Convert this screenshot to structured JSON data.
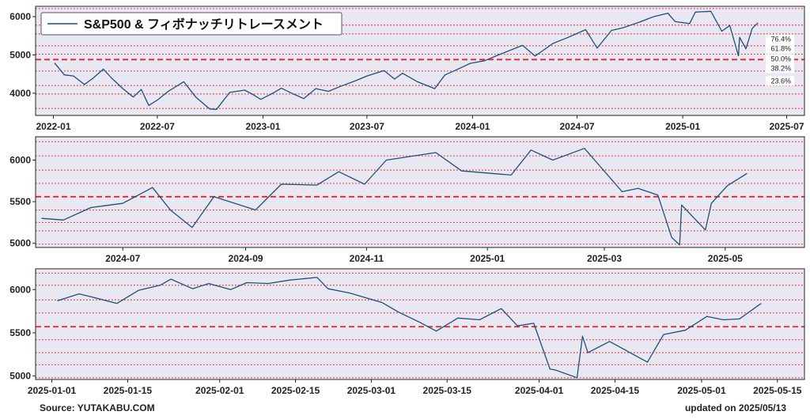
{
  "legend": {
    "label": "S&P500 & フィボナッチリトレースメント",
    "line_color": "#1f4e79"
  },
  "colors": {
    "plot_bg": "#e9e8f2",
    "series": "#1f4e79",
    "fib_line": "#e0242c",
    "frame": "#222222"
  },
  "footer": {
    "source": "Source: YUTAKABU.COM",
    "updated": "updated on 2025/05/13"
  },
  "chart_data": [
    {
      "type": "line",
      "title": "",
      "xlabel": "",
      "ylabel": "",
      "x_ticks": [
        "2022-01",
        "2022-07",
        "2023-01",
        "2023-07",
        "2024-01",
        "2024-07",
        "2025-01",
        "2025-07"
      ],
      "y_ticks": [
        4000,
        5000,
        6000
      ],
      "xlim": [
        "2021-12-01",
        "2025-08-01"
      ],
      "ylim": [
        3420,
        6270
      ],
      "fib_levels": [
        {
          "label": "76.4%",
          "value": 5410
        },
        {
          "label": "61.8%",
          "value": 5160
        },
        {
          "label": "50.0%",
          "value": 4900
        },
        {
          "label": "38.2%",
          "value": 4650
        },
        {
          "label": "23.6%",
          "value": 4320
        }
      ],
      "dotted_levels": [
        6210,
        5780,
        5550,
        5240,
        5020,
        4580,
        4200,
        3980,
        3600
      ],
      "dashed_level": 4880,
      "series": [
        {
          "x": [
            "2022-01-03",
            "2022-01-20",
            "2022-02-05",
            "2022-02-24",
            "2022-03-10",
            "2022-03-29",
            "2022-04-12",
            "2022-05-02",
            "2022-05-20",
            "2022-06-03",
            "2022-06-16",
            "2022-07-01",
            "2022-07-20",
            "2022-08-16",
            "2022-09-06",
            "2022-09-30",
            "2022-10-12",
            "2022-11-04",
            "2022-11-30",
            "2022-12-13",
            "2022-12-28",
            "2023-01-18",
            "2023-02-02",
            "2023-02-23",
            "2023-03-13",
            "2023-04-03",
            "2023-04-25",
            "2023-05-18",
            "2023-06-12",
            "2023-07-01",
            "2023-07-31",
            "2023-08-18",
            "2023-09-01",
            "2023-09-27",
            "2023-10-27",
            "2023-11-14",
            "2023-12-01",
            "2023-12-28",
            "2024-01-22",
            "2024-02-15",
            "2024-03-28",
            "2024-04-19",
            "2024-05-20",
            "2024-06-14",
            "2024-07-16",
            "2024-08-05",
            "2024-08-30",
            "2024-09-19",
            "2024-10-18",
            "2024-11-11",
            "2024-12-06",
            "2024-12-19",
            "2025-01-13",
            "2025-01-23",
            "2025-02-19",
            "2025-03-10",
            "2025-03-24",
            "2025-04-08",
            "2025-04-10",
            "2025-04-21",
            "2025-05-02",
            "2025-05-12"
          ],
          "values": [
            4790,
            4480,
            4450,
            4230,
            4380,
            4630,
            4400,
            4120,
            3900,
            4100,
            3680,
            3820,
            4050,
            4300,
            3900,
            3590,
            3580,
            4020,
            4080,
            3980,
            3840,
            4000,
            4130,
            3980,
            3860,
            4120,
            4050,
            4190,
            4330,
            4450,
            4590,
            4370,
            4520,
            4300,
            4120,
            4480,
            4590,
            4780,
            4850,
            5000,
            5250,
            4970,
            5300,
            5450,
            5660,
            5180,
            5640,
            5710,
            5860,
            6000,
            6090,
            5870,
            5820,
            6120,
            6140,
            5620,
            5770,
            4980,
            5460,
            5160,
            5690,
            5840
          ]
        }
      ]
    },
    {
      "type": "line",
      "title": "",
      "xlabel": "",
      "ylabel": "",
      "x_ticks": [
        "2024-07",
        "2024-09",
        "2024-11",
        "2025-01",
        "2025-03",
        "2025-05"
      ],
      "y_ticks": [
        5000,
        5500,
        6000
      ],
      "xlim": [
        "2024-05-18",
        "2025-06-10"
      ],
      "ylim": [
        4950,
        6280
      ],
      "dotted_levels": [
        6220,
        6050,
        5880,
        5720,
        5400,
        5250,
        5150,
        4990
      ],
      "dashed_level": 5560,
      "series": [
        {
          "x": [
            "2024-05-21",
            "2024-06-01",
            "2024-06-15",
            "2024-07-01",
            "2024-07-16",
            "2024-07-25",
            "2024-08-05",
            "2024-08-16",
            "2024-09-06",
            "2024-09-19",
            "2024-10-07",
            "2024-10-18",
            "2024-10-31",
            "2024-11-11",
            "2024-12-06",
            "2024-12-19",
            "2025-01-13",
            "2025-01-23",
            "2025-02-03",
            "2025-02-19",
            "2025-03-10",
            "2025-03-18",
            "2025-03-28",
            "2025-04-04",
            "2025-04-08",
            "2025-04-09",
            "2025-04-21",
            "2025-04-24",
            "2025-05-02",
            "2025-05-12"
          ],
          "values": [
            5300,
            5280,
            5430,
            5480,
            5670,
            5400,
            5190,
            5560,
            5400,
            5710,
            5700,
            5860,
            5710,
            6000,
            6090,
            5870,
            5820,
            6120,
            6000,
            6140,
            5620,
            5660,
            5580,
            5070,
            4980,
            5460,
            5160,
            5480,
            5690,
            5840
          ]
        }
      ]
    },
    {
      "type": "line",
      "title": "",
      "xlabel": "",
      "ylabel": "",
      "x_ticks": [
        "2025-01-01",
        "2025-01-15",
        "2025-02-01",
        "2025-02-15",
        "2025-03-01",
        "2025-03-15",
        "2025-04-01",
        "2025-04-15",
        "2025-05-01",
        "2025-05-15"
      ],
      "y_ticks": [
        5000,
        5500,
        6000
      ],
      "xlim": [
        "2024-12-29",
        "2025-05-20"
      ],
      "ylim": [
        4960,
        6240
      ],
      "dotted_levels": [
        6190,
        6050,
        5880,
        5730,
        5420,
        5270,
        5130,
        4980
      ],
      "dashed_level": 5570,
      "series": [
        {
          "x": [
            "2025-01-02",
            "2025-01-06",
            "2025-01-08",
            "2025-01-13",
            "2025-01-17",
            "2025-01-21",
            "2025-01-23",
            "2025-01-27",
            "2025-01-30",
            "2025-02-03",
            "2025-02-06",
            "2025-02-10",
            "2025-02-14",
            "2025-02-19",
            "2025-02-21",
            "2025-02-25",
            "2025-03-03",
            "2025-03-06",
            "2025-03-10",
            "2025-03-13",
            "2025-03-17",
            "2025-03-21",
            "2025-03-25",
            "2025-03-28",
            "2025-03-31",
            "2025-04-03",
            "2025-04-04",
            "2025-04-08",
            "2025-04-09",
            "2025-04-10",
            "2025-04-14",
            "2025-04-21",
            "2025-04-24",
            "2025-04-28",
            "2025-05-02",
            "2025-05-05",
            "2025-05-08",
            "2025-05-12"
          ],
          "values": [
            5870,
            5950,
            5920,
            5840,
            5990,
            6050,
            6120,
            6010,
            6070,
            6000,
            6080,
            6070,
            6110,
            6140,
            6010,
            5960,
            5850,
            5740,
            5620,
            5520,
            5670,
            5650,
            5780,
            5580,
            5610,
            5080,
            5070,
            4980,
            5460,
            5270,
            5400,
            5160,
            5480,
            5530,
            5690,
            5650,
            5660,
            5840
          ]
        }
      ]
    }
  ]
}
